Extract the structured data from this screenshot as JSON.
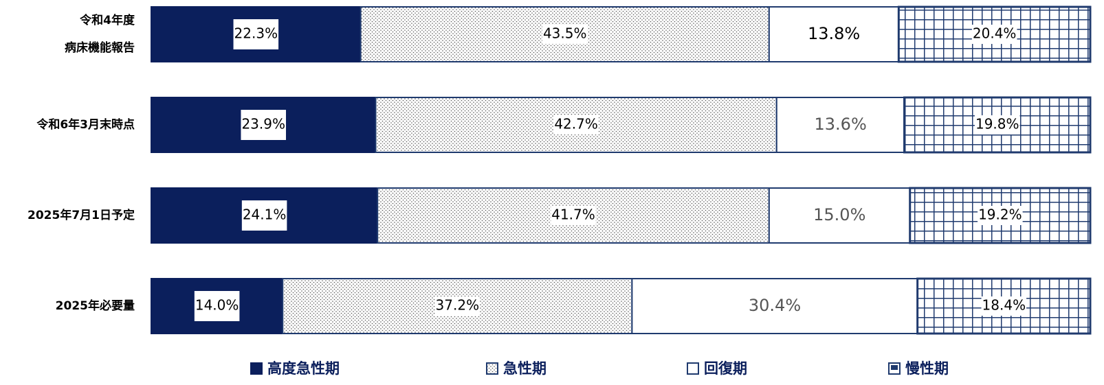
{
  "chart_data": {
    "type": "stacked_barh",
    "categories": [
      "令和4年度\n病床機能報告",
      "令和6年3月末時点",
      "2025年7月1日予定",
      "2025年必要量"
    ],
    "xlim": [
      0,
      100
    ],
    "legend": "bottom",
    "series": [
      {
        "name": "高度急性期",
        "color": "#0b1f5c",
        "pattern": "solid",
        "values": [
          22.3,
          23.9,
          24.1,
          14.0
        ],
        "value_labels": [
          "22.3%",
          "23.9%",
          "24.1%",
          "14.0%"
        ]
      },
      {
        "name": "急性期",
        "color": "#1f3a6e",
        "pattern": "dots",
        "values": [
          43.5,
          42.7,
          41.7,
          37.2
        ],
        "value_labels": [
          "43.5%",
          "42.7%",
          "41.7%",
          "37.2%"
        ]
      },
      {
        "name": "回復期",
        "color": "#1f3a6e",
        "pattern": "none",
        "values": [
          13.8,
          13.6,
          15.0,
          30.4
        ],
        "value_labels": [
          "13.8%",
          "13.6%",
          "15.0%",
          "30.4%"
        ]
      },
      {
        "name": "慢性期",
        "color": "#1f3a6e",
        "pattern": "grid",
        "values": [
          20.4,
          19.8,
          19.2,
          18.4
        ],
        "value_labels": [
          "20.4%",
          "19.8%",
          "19.2%",
          "18.4%"
        ]
      }
    ]
  }
}
